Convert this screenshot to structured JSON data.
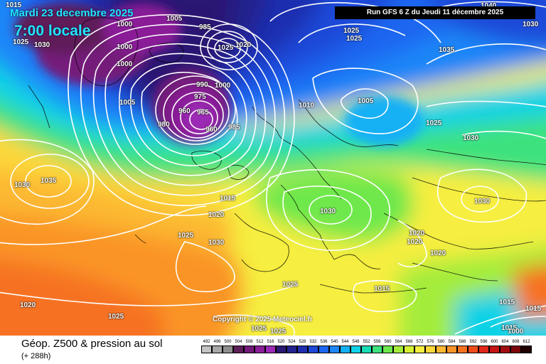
{
  "header": {
    "date": "Mardi 23 decembre 2025",
    "time": "7:00 locale",
    "run": "Run GFS 6 Z du Jeudi 11 décembre 2025"
  },
  "copyright": "Copyright © 2025 Meteociel.fr",
  "footer": {
    "title": "Géop. Z500 & pression au sol",
    "subtitle": "(+ 288h)"
  },
  "legend": {
    "labels": [
      "492",
      "496",
      "500",
      "504",
      "508",
      "512",
      "516",
      "520",
      "524",
      "528",
      "532",
      "536",
      "540",
      "544",
      "548",
      "552",
      "556",
      "560",
      "564",
      "568",
      "572",
      "576",
      "580",
      "584",
      "588",
      "592",
      "596",
      "600",
      "604",
      "608",
      "612"
    ],
    "colors": [
      "#c4c4c4",
      "#a8a8a8",
      "#8e8e8e",
      "#5e1f59",
      "#741a7a",
      "#8a1f98",
      "#9c2ab6",
      "#2a1872",
      "#24238e",
      "#1f2fb0",
      "#1f48d8",
      "#1e66f0",
      "#1e86f8",
      "#12b0f4",
      "#10d2e6",
      "#18dcb4",
      "#3ce27e",
      "#6ee84c",
      "#a4ec3a",
      "#d6f034",
      "#f6ee40",
      "#fcd83a",
      "#fcb832",
      "#fa9428",
      "#f67220",
      "#f04c1c",
      "#e02818",
      "#c41414",
      "#a00c10",
      "#78060a",
      "#200000"
    ]
  },
  "map": {
    "pressure_labels": [
      "1015",
      "1025",
      "1030",
      "1000",
      "1000",
      "1000",
      "1005",
      "985",
      "1025",
      "1020",
      "1000",
      "990",
      "975",
      "960",
      "965",
      "960",
      "980",
      "985",
      "1005",
      "1010",
      "1005",
      "1025",
      "1025",
      "1035",
      "1030",
      "1040",
      "1025",
      "1030",
      "1030",
      "1035",
      "1030",
      "1015",
      "1020",
      "1025",
      "1030",
      "1030",
      "1020",
      "1020",
      "1020",
      "1025",
      "1015",
      "1020",
      "1025",
      "1025",
      "1025",
      "1015",
      "1015",
      "1015",
      "1000"
    ]
  }
}
